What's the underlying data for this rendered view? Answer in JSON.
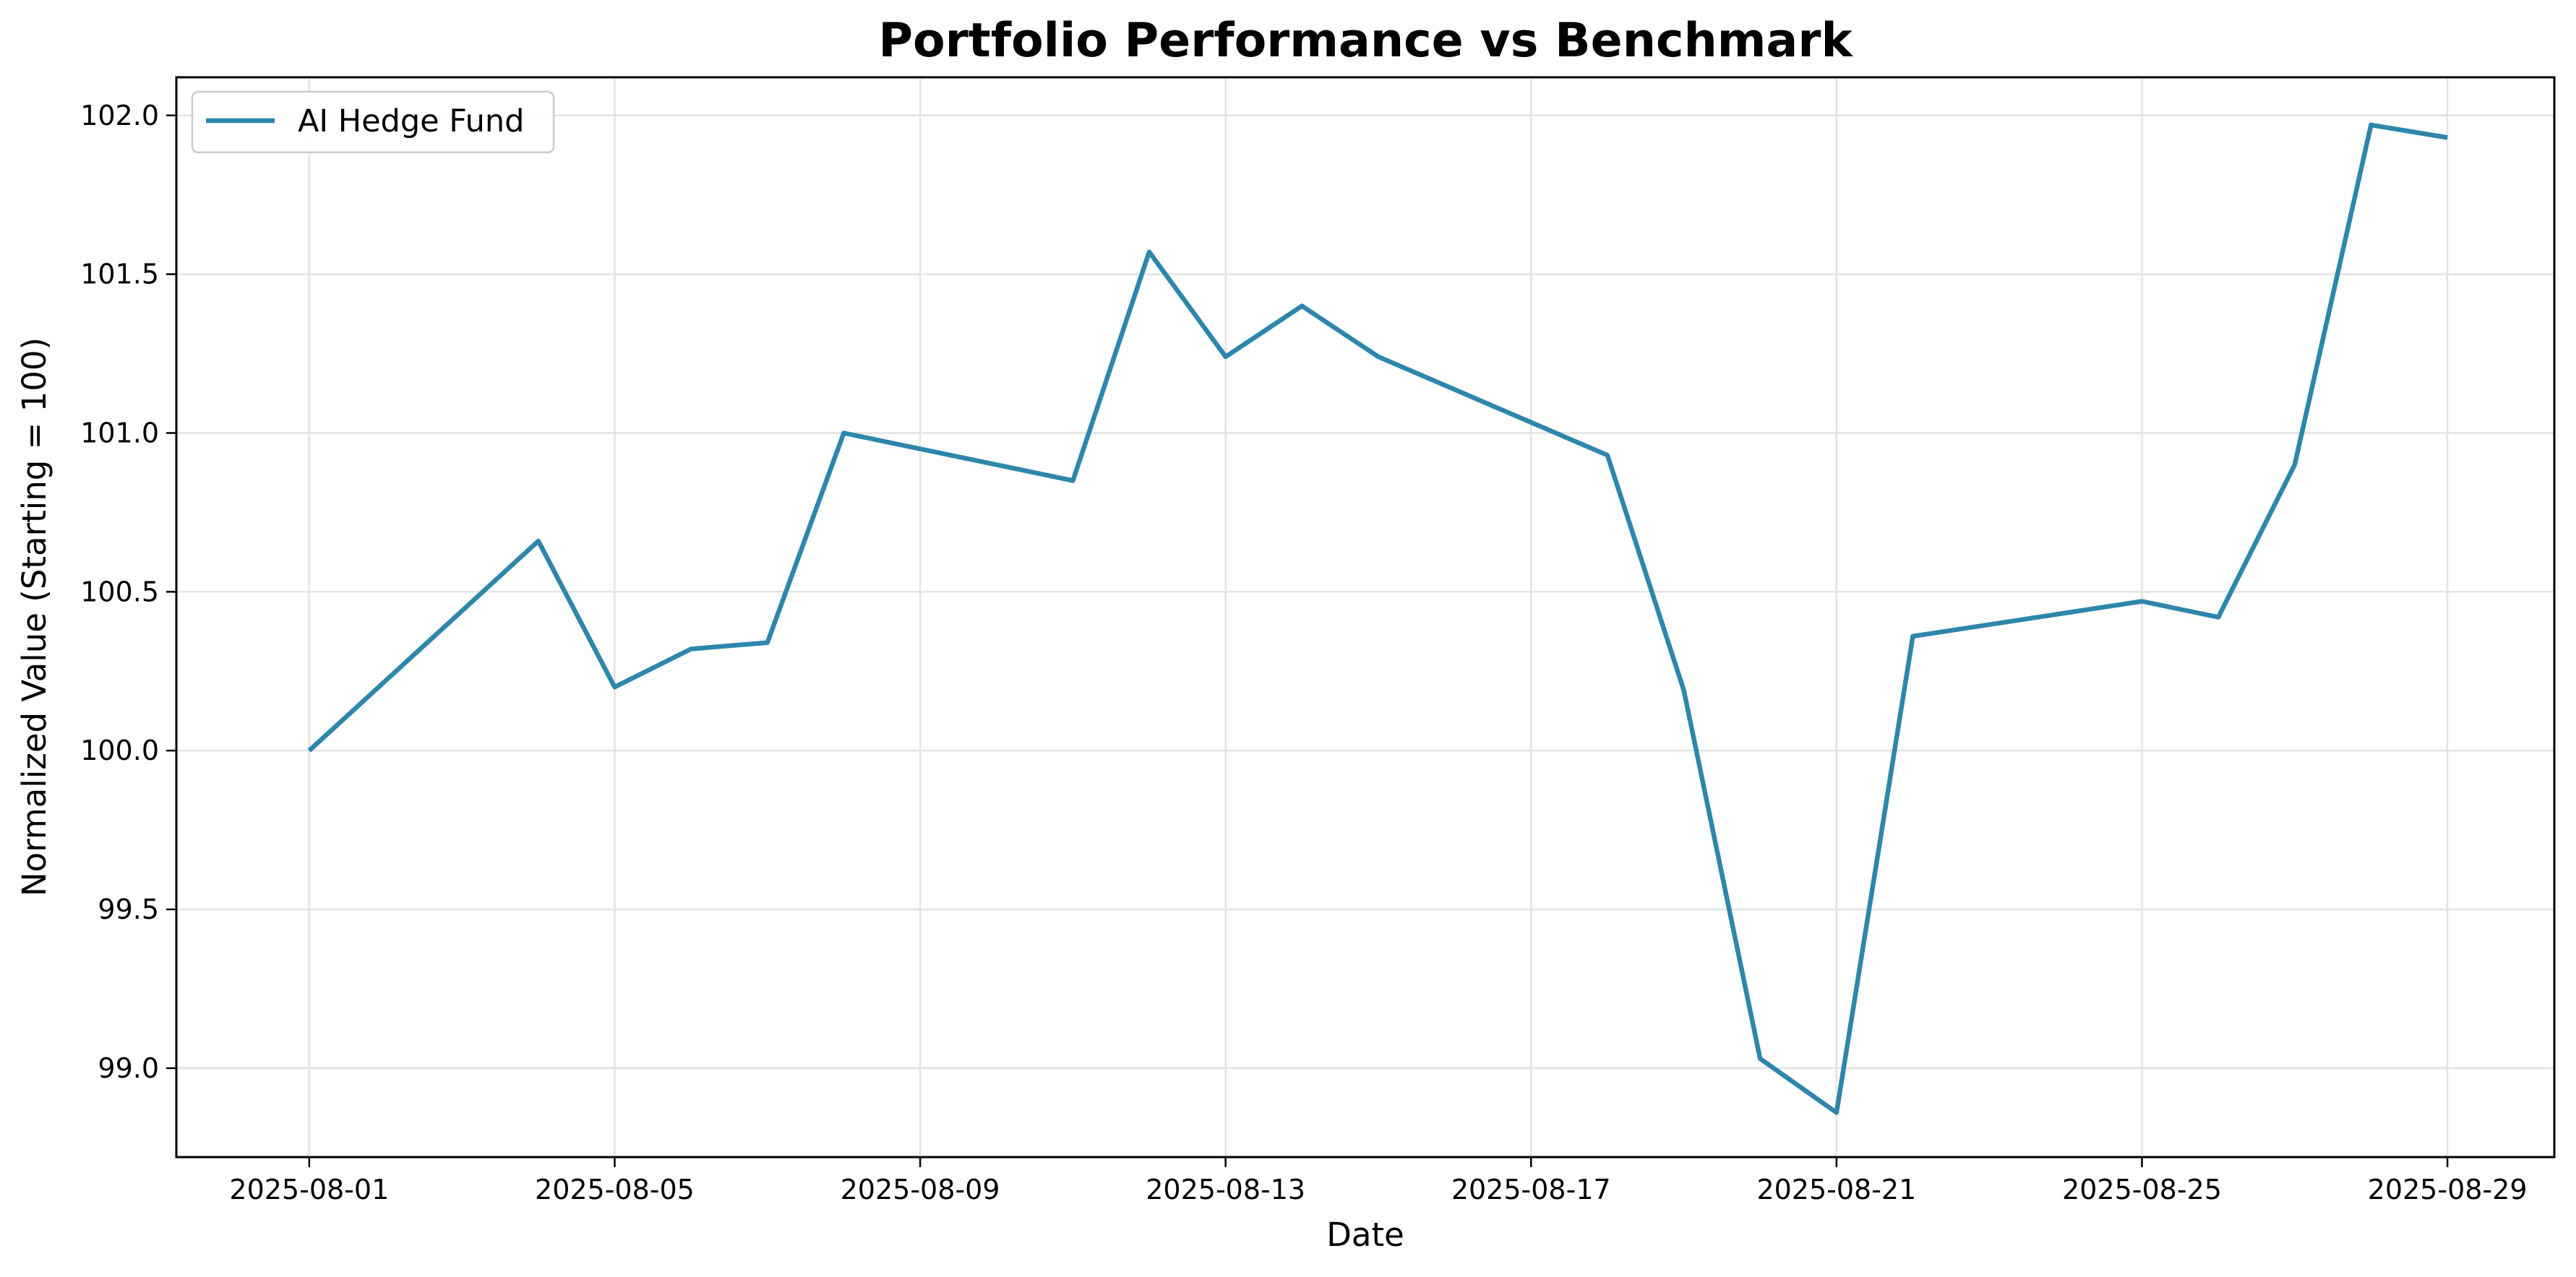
{
  "chart_data": {
    "type": "line",
    "title": "Portfolio Performance vs Benchmark",
    "xlabel": "Date",
    "ylabel": "Normalized Value (Starting = 100)",
    "xlim": [
      "2025-07-30.26",
      "2025-08-30.4"
    ],
    "ylim": [
      98.72,
      102.12
    ],
    "x_ticks": [
      "2025-08-01",
      "2025-08-05",
      "2025-08-09",
      "2025-08-13",
      "2025-08-17",
      "2025-08-21",
      "2025-08-25",
      "2025-08-29"
    ],
    "y_ticks": [
      "99.0",
      "99.5",
      "100.0",
      "100.5",
      "101.0",
      "101.5",
      "102.0"
    ],
    "y_tick_values": [
      99.0,
      99.5,
      100.0,
      100.5,
      101.0,
      101.5,
      102.0
    ],
    "grid": true,
    "legend_position": "top-left",
    "series": [
      {
        "name": "AI Hedge Fund",
        "color": "#2e86ab",
        "points": [
          {
            "x": "2025-08-01",
            "y": 100.0
          },
          {
            "x": "2025-08-04",
            "y": 100.66
          },
          {
            "x": "2025-08-05",
            "y": 100.2
          },
          {
            "x": "2025-08-06",
            "y": 100.32
          },
          {
            "x": "2025-08-07",
            "y": 100.34
          },
          {
            "x": "2025-08-08",
            "y": 101.0
          },
          {
            "x": "2025-08-11",
            "y": 100.85
          },
          {
            "x": "2025-08-12",
            "y": 101.57
          },
          {
            "x": "2025-08-13",
            "y": 101.24
          },
          {
            "x": "2025-08-14",
            "y": 101.4
          },
          {
            "x": "2025-08-15",
            "y": 101.24
          },
          {
            "x": "2025-08-18",
            "y": 100.93
          },
          {
            "x": "2025-08-19",
            "y": 100.19
          },
          {
            "x": "2025-08-20",
            "y": 99.03
          },
          {
            "x": "2025-08-21",
            "y": 98.86
          },
          {
            "x": "2025-08-22",
            "y": 100.36
          },
          {
            "x": "2025-08-25",
            "y": 100.47
          },
          {
            "x": "2025-08-26",
            "y": 100.42
          },
          {
            "x": "2025-08-27",
            "y": 100.9
          },
          {
            "x": "2025-08-28",
            "y": 101.97
          },
          {
            "x": "2025-08-29",
            "y": 101.93
          }
        ]
      }
    ]
  }
}
